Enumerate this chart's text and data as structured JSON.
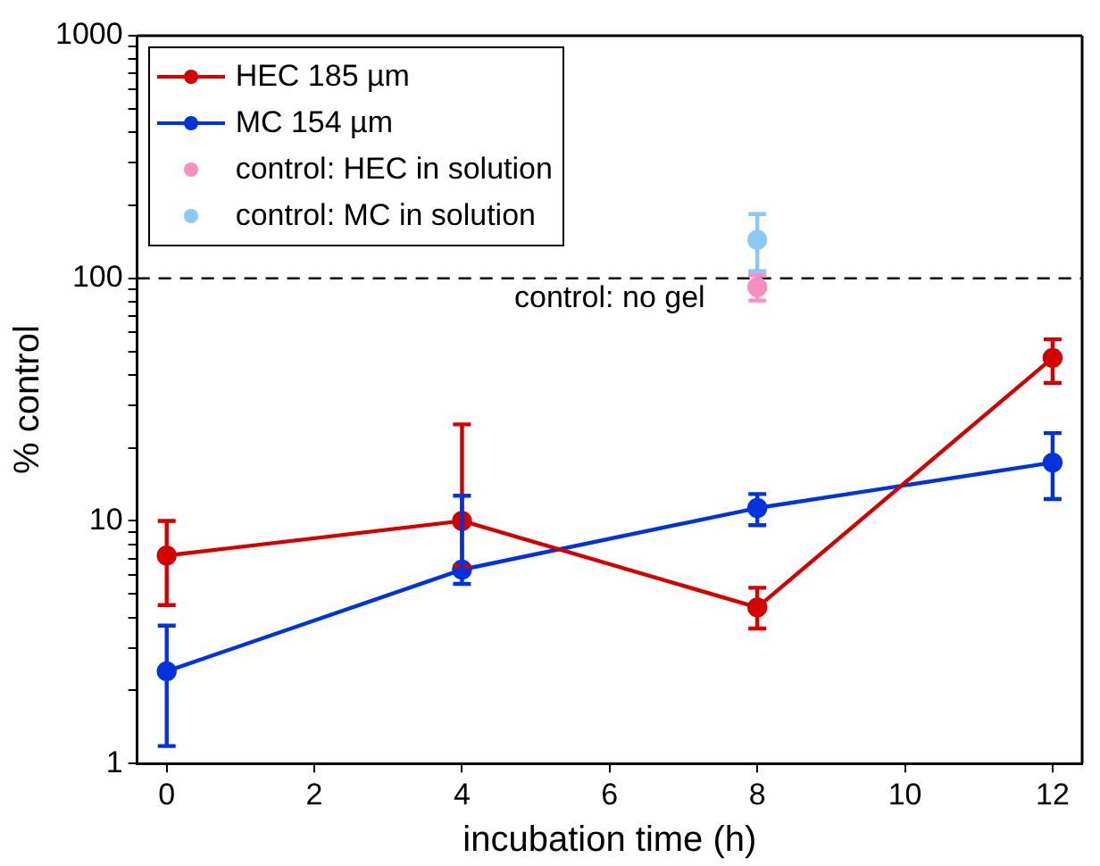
{
  "chart_data": {
    "type": "line",
    "xlabel": "incubation time (h)",
    "ylabel": "% control",
    "log": "y",
    "grid": false,
    "legend": "top left",
    "marker": "circle",
    "line_style": "solid",
    "xlim": [
      -0.4,
      12.4
    ],
    "xticks": [
      0,
      2,
      4,
      6,
      8,
      10,
      12
    ],
    "ylim": [
      1,
      1000
    ],
    "yticks": [
      1,
      {
        "value": 2,
        "label": null
      },
      {
        "value": 3,
        "label": null
      },
      {
        "value": 4,
        "label": null
      },
      {
        "value": 5,
        "label": null
      },
      {
        "value": 6,
        "label": null
      },
      {
        "value": 7,
        "label": null
      },
      {
        "value": 8,
        "label": null
      },
      {
        "value": 9,
        "label": null
      },
      10,
      {
        "value": 20,
        "label": null
      },
      {
        "value": 30,
        "label": null
      },
      {
        "value": 40,
        "label": null
      },
      {
        "value": 50,
        "label": null
      },
      {
        "value": 60,
        "label": null
      },
      {
        "value": 70,
        "label": null
      },
      {
        "value": 80,
        "label": null
      },
      {
        "value": 90,
        "label": null
      },
      100,
      {
        "value": 200,
        "label": null
      },
      {
        "value": 300,
        "label": null
      },
      {
        "value": 400,
        "label": null
      },
      {
        "value": 500,
        "label": null
      },
      {
        "value": 600,
        "label": null
      },
      {
        "value": 700,
        "label": null
      },
      {
        "value": 800,
        "label": null
      },
      {
        "value": 900,
        "label": null
      },
      1000
    ],
    "series": [
      {
        "name": "HEC 185 µm",
        "color": "#d40000",
        "x": [
          0,
          4,
          8,
          12
        ],
        "values": [
          7.2,
          10,
          4.4,
          47
        ],
        "errors": [
          [
            4.5,
            10
          ],
          [
            6.5,
            25
          ],
          [
            3.6,
            5.3
          ],
          [
            37,
            56
          ]
        ]
      },
      {
        "name": "MC 154 µm",
        "color": "#0033dd",
        "x": [
          0,
          4,
          8,
          12
        ],
        "values": [
          2.4,
          6.3,
          11.3,
          17.4
        ],
        "errors": [
          [
            1.18,
            3.7
          ],
          [
            5.5,
            12.7
          ],
          [
            9.6,
            12.9
          ],
          [
            12.3,
            23
          ]
        ]
      },
      {
        "name": "control: HEC in solution",
        "type": "scatter",
        "color": "#f78fc0",
        "x": [
          8
        ],
        "values": [
          92
        ],
        "errors": [
          [
            81,
            103
          ]
        ]
      },
      {
        "name": "control: MC in solution",
        "type": "scatter",
        "color": "#8ec8f8",
        "x": [
          8
        ],
        "values": [
          144
        ],
        "errors": [
          [
            107,
            184
          ]
        ]
      }
    ],
    "ref_lines": [
      {
        "axis": "y",
        "value": 100,
        "label": "control: no gel",
        "line_style": "dashed",
        "color": "#000000"
      }
    ]
  }
}
